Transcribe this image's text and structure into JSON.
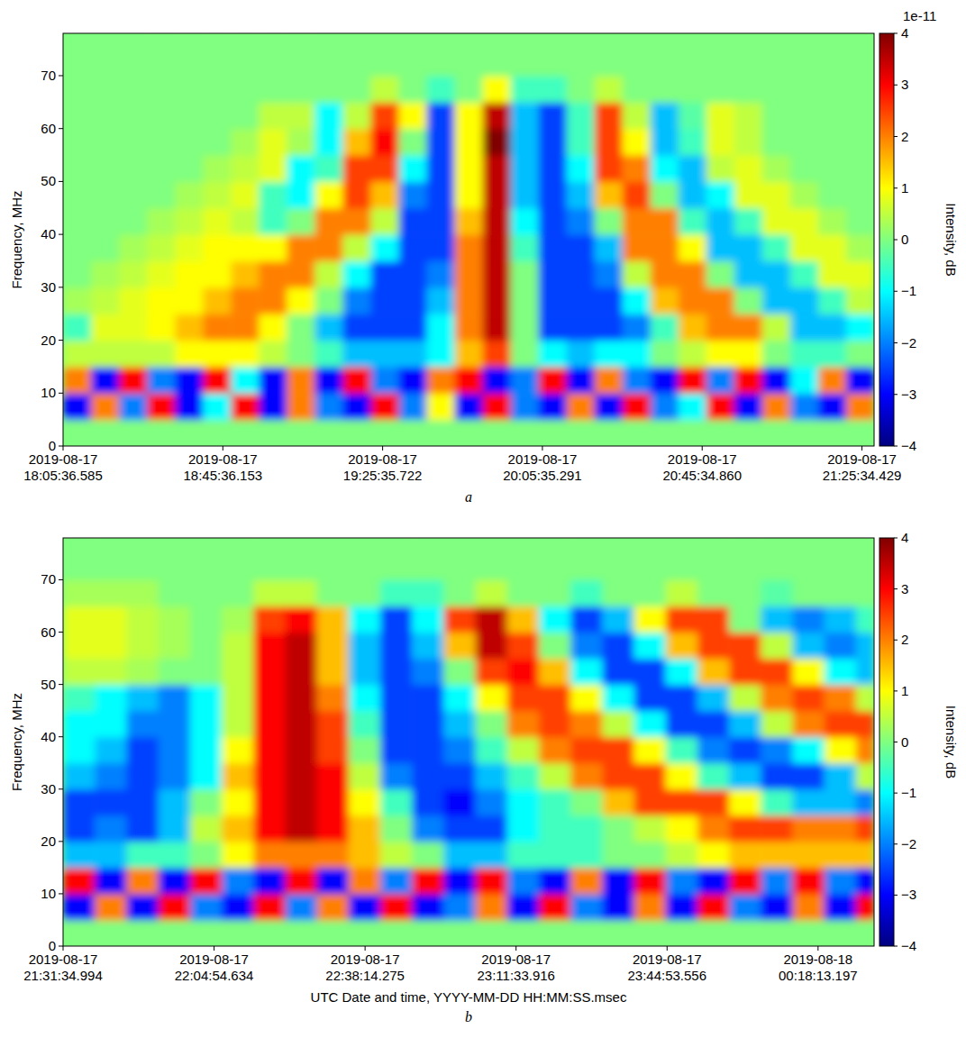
{
  "chart_data": [
    {
      "type": "heatmap",
      "title": "a",
      "y_label": "Frequency, MHz",
      "xlim": [
        "2019-08-17T18:05:36.585",
        "2019-08-17T21:28:36.585"
      ],
      "xticks": [
        {
          "value": "2019-08-17T18:05:36.585",
          "label": "2019-08-17 18:05:36.585"
        },
        {
          "value": "2019-08-17T18:45:36.153",
          "label": "2019-08-17 18:45:36.153"
        },
        {
          "value": "2019-08-17T19:25:35.722",
          "label": "2019-08-17 19:25:35.722"
        },
        {
          "value": "2019-08-17T20:05:35.291",
          "label": "2019-08-17 20:05:35.291"
        },
        {
          "value": "2019-08-17T20:45:34.860",
          "label": "2019-08-17 20:45:34.860"
        },
        {
          "value": "2019-08-17T21:25:34.429",
          "label": "2019-08-17 21:25:34.429"
        }
      ],
      "ylim": [
        0,
        78
      ],
      "yticks": [
        0,
        10,
        20,
        30,
        40,
        50,
        60,
        70
      ],
      "x_edges": [
        "2019-08-17T18:05:36.585",
        "2019-08-17T18:12:36.585",
        "2019-08-17T18:19:36.585",
        "2019-08-17T18:26:36.585",
        "2019-08-17T18:33:36.585",
        "2019-08-17T18:40:36.585",
        "2019-08-17T18:47:36.585",
        "2019-08-17T18:54:36.585",
        "2019-08-17T19:01:36.585",
        "2019-08-17T19:08:36.585",
        "2019-08-17T19:15:36.585",
        "2019-08-17T19:22:36.585",
        "2019-08-17T19:29:36.585",
        "2019-08-17T19:36:36.585",
        "2019-08-17T19:43:36.585",
        "2019-08-17T19:50:36.585",
        "2019-08-17T19:57:36.585",
        "2019-08-17T20:04:36.585",
        "2019-08-17T20:11:36.585",
        "2019-08-17T20:18:36.585",
        "2019-08-17T20:25:36.585",
        "2019-08-17T20:32:36.585",
        "2019-08-17T20:39:36.585",
        "2019-08-17T20:46:36.585",
        "2019-08-17T20:53:36.585",
        "2019-08-17T21:00:36.585",
        "2019-08-17T21:07:36.585",
        "2019-08-17T21:14:36.585",
        "2019-08-17T21:21:36.585",
        "2019-08-17T21:28:36.585"
      ],
      "y_edges": [
        0,
        5,
        10,
        15,
        20,
        25,
        30,
        35,
        40,
        45,
        50,
        55,
        60,
        65,
        70,
        78
      ],
      "cells": [
        [
          0,
          0,
          0,
          0,
          0,
          0,
          0,
          0,
          0,
          0,
          0,
          0,
          0,
          0,
          0,
          0,
          0,
          0,
          0,
          0,
          0,
          0,
          0,
          0,
          0,
          0,
          0,
          0,
          0
        ],
        [
          -3,
          2,
          -2,
          3,
          -3,
          -1,
          3,
          -3,
          2,
          -2,
          -3,
          3,
          -2,
          1,
          -3,
          3,
          -2,
          -3,
          2,
          -3,
          3,
          -2,
          -1,
          3,
          -3,
          2,
          -2,
          -3,
          2
        ],
        [
          2,
          -3,
          3,
          -2,
          -3,
          3,
          -1,
          -3,
          2,
          -3,
          3,
          -2,
          -3,
          2,
          3,
          -3,
          -2,
          3,
          -3,
          2,
          -2,
          -3,
          3,
          -2,
          3,
          -3,
          -1,
          2,
          -3
        ],
        [
          0.5,
          0.5,
          0.5,
          0.5,
          1,
          1,
          1,
          0.5,
          0,
          -0.5,
          -1.5,
          -1.5,
          -1.5,
          -1,
          1.5,
          2.5,
          0,
          -1,
          -1.5,
          -1,
          -1,
          0,
          0.5,
          1,
          1,
          0,
          -0.5,
          -0.5,
          0
        ],
        [
          -0.5,
          0.8,
          0.8,
          1,
          1.5,
          2,
          2,
          1,
          0,
          -1.5,
          -2.5,
          -2.5,
          -2.5,
          -1,
          2,
          3.5,
          0,
          -2.5,
          -2.5,
          -2.5,
          -2,
          -0.5,
          1.5,
          2,
          2,
          0.5,
          -1.5,
          -1.5,
          -1
        ],
        [
          0.3,
          0.5,
          0.8,
          1,
          1,
          1.5,
          2,
          2,
          1,
          0,
          -2,
          -2.5,
          -2.5,
          -1.5,
          2,
          3.5,
          0,
          -2.5,
          -2.5,
          -2.5,
          -1,
          1.5,
          2,
          2,
          0,
          -1.5,
          -1.5,
          -0.5,
          0.5
        ],
        [
          0,
          0.3,
          0.5,
          0.8,
          1,
          1,
          1.5,
          2,
          2,
          0.5,
          -1,
          -2.5,
          -2.5,
          -2,
          2,
          3.5,
          0,
          -2.5,
          -2.5,
          -2,
          0.5,
          2,
          2,
          0,
          -1.5,
          -1.5,
          -0.5,
          0.8,
          0.8
        ],
        [
          0,
          0,
          0.3,
          0.5,
          0.8,
          1,
          1,
          1,
          2,
          2,
          0.5,
          -1,
          -2.5,
          -2.5,
          2,
          3.5,
          -0.5,
          -2.5,
          -2.5,
          -1.5,
          2,
          2,
          1,
          -1.5,
          -1.5,
          -0.5,
          0.8,
          0.8,
          0.3
        ],
        [
          0,
          0,
          0,
          0.3,
          0.5,
          0.8,
          0.5,
          -0.5,
          0,
          2,
          2,
          0.5,
          -2.5,
          -2.5,
          1.5,
          3.5,
          -1,
          -2.5,
          -2,
          0,
          2,
          2,
          -0.5,
          -1.5,
          -0.5,
          0.8,
          0.8,
          0.3,
          0
        ],
        [
          0,
          0,
          0,
          0,
          0.3,
          0.5,
          0.8,
          -0.5,
          -1,
          1,
          2.5,
          1.5,
          -2,
          -2.5,
          1,
          3.5,
          -1.5,
          -2.5,
          -1.5,
          1.5,
          2.5,
          0,
          -1.5,
          -1,
          0.8,
          0.8,
          0.3,
          0,
          0
        ],
        [
          0,
          0,
          0,
          0,
          0,
          0.3,
          0.5,
          0.8,
          -1,
          -0.5,
          2.5,
          2.5,
          -1,
          -2.5,
          1,
          3.5,
          -1.5,
          -2.5,
          -1,
          2.5,
          2,
          -1,
          -1.5,
          0.5,
          0.8,
          0.3,
          0,
          0,
          0
        ],
        [
          0,
          0,
          0,
          0,
          0,
          0,
          0.3,
          0.8,
          0.3,
          -1,
          1.5,
          3,
          0,
          -2.5,
          1,
          4,
          -1.5,
          -2.5,
          -0.5,
          2.5,
          1,
          -1.5,
          -0.5,
          0.8,
          0.5,
          0,
          0,
          0,
          0
        ],
        [
          0,
          0,
          0,
          0,
          0,
          0,
          0,
          0.5,
          0.5,
          -1,
          0.5,
          2.5,
          1,
          -2.5,
          1,
          3.5,
          -1.5,
          -2.5,
          -0.5,
          2.5,
          0.5,
          -1.5,
          -0.3,
          0.8,
          0.5,
          0,
          0,
          0,
          0
        ],
        [
          0,
          0,
          0,
          0,
          0,
          0,
          0,
          0,
          0,
          0,
          0,
          0.5,
          0,
          -0.5,
          0,
          1,
          -0.5,
          -0.5,
          0,
          0.5,
          0,
          0,
          0,
          0,
          0,
          0,
          0,
          0,
          0
        ],
        [
          0,
          0,
          0,
          0,
          0,
          0,
          0,
          0,
          0,
          0,
          0,
          0,
          0,
          0,
          0,
          0,
          0,
          0,
          0,
          0,
          0,
          0,
          0,
          0,
          0,
          0,
          0,
          0,
          0
        ]
      ],
      "colorbar": {
        "label": "Intensity, dB",
        "offset_label": "1e-11",
        "range": [
          -4,
          4
        ],
        "ticks": [
          {
            "value": -4,
            "label": "−4"
          },
          {
            "value": -3,
            "label": "−3"
          },
          {
            "value": -2,
            "label": "−2"
          },
          {
            "value": -1,
            "label": "−1"
          },
          0,
          1,
          2,
          3,
          4
        ]
      }
    },
    {
      "type": "heatmap",
      "title": "b",
      "y_label": "Frequency, MHz",
      "x_label": "UTC Date and time, YYYY-MM-DD HH:MM:SS.msec",
      "xlim": [
        "2019-08-17T21:31:34.994",
        "2019-08-18T00:30:34.994"
      ],
      "xticks": [
        {
          "value": "2019-08-17T21:31:34.994",
          "label": "2019-08-17 21:31:34.994"
        },
        {
          "value": "2019-08-17T22:04:54.634",
          "label": "2019-08-17 22:04:54.634"
        },
        {
          "value": "2019-08-17T22:38:14.275",
          "label": "2019-08-17 22:38:14.275"
        },
        {
          "value": "2019-08-17T23:11:33.916",
          "label": "2019-08-17 23:11:33.916"
        },
        {
          "value": "2019-08-17T23:44:53.556",
          "label": "2019-08-17 23:44:53.556"
        },
        {
          "value": "2019-08-18T00:18:13.197",
          "label": "2019-08-18 00:18:13.197"
        }
      ],
      "ylim": [
        0,
        78
      ],
      "yticks": [
        0,
        10,
        20,
        30,
        40,
        50,
        60,
        70
      ],
      "x_edges": [
        "2019-08-17T21:31:34.994",
        "2019-08-17T21:38:34.994",
        "2019-08-17T21:45:34.994",
        "2019-08-17T21:52:34.994",
        "2019-08-17T21:59:34.994",
        "2019-08-17T22:06:34.994",
        "2019-08-17T22:13:34.994",
        "2019-08-17T22:20:34.994",
        "2019-08-17T22:27:34.994",
        "2019-08-17T22:34:34.994",
        "2019-08-17T22:41:34.994",
        "2019-08-17T22:48:34.994",
        "2019-08-17T22:55:34.994",
        "2019-08-17T23:02:34.994",
        "2019-08-17T23:09:34.994",
        "2019-08-17T23:16:34.994",
        "2019-08-17T23:23:34.994",
        "2019-08-17T23:30:34.994",
        "2019-08-17T23:37:34.994",
        "2019-08-17T23:44:34.994",
        "2019-08-17T23:51:34.994",
        "2019-08-17T23:58:34.994",
        "2019-08-18T00:05:34.994",
        "2019-08-18T00:12:34.994",
        "2019-08-18T00:19:34.994",
        "2019-08-18T00:26:34.994",
        "2019-08-18T00:30:34.994"
      ],
      "y_edges": [
        0,
        5,
        10,
        15,
        20,
        25,
        30,
        35,
        40,
        45,
        50,
        55,
        60,
        65,
        70,
        78
      ],
      "cells": [
        [
          0,
          0,
          0,
          0,
          0,
          0,
          0,
          0,
          0,
          0,
          0,
          0,
          0,
          0,
          0,
          0,
          0,
          0,
          0,
          0,
          0,
          0,
          0,
          0,
          0,
          0
        ],
        [
          -3,
          2,
          -3,
          3,
          -2,
          -3,
          3,
          -2,
          2,
          -3,
          3,
          -3,
          -2,
          2,
          -3,
          3,
          -2,
          -3,
          2,
          -3,
          3,
          -2,
          -3,
          2,
          -3,
          3
        ],
        [
          3,
          -3,
          2,
          -3,
          3,
          -2,
          -3,
          3,
          -3,
          2,
          -2,
          3,
          -3,
          3,
          -2,
          -3,
          2,
          -3,
          3,
          -2,
          -3,
          3,
          -2,
          3,
          -2,
          -3
        ],
        [
          -1.5,
          -1.5,
          -0.5,
          -0.5,
          0,
          1,
          2,
          2,
          2,
          1.5,
          0.5,
          0,
          -1.5,
          -1.5,
          -0.5,
          -0.5,
          -0.5,
          0,
          0,
          0.5,
          1,
          1.5,
          1.5,
          1.5,
          1.5,
          1.5
        ],
        [
          -2.5,
          -2,
          -2.5,
          -1.5,
          0.5,
          1.5,
          3,
          3.5,
          3,
          1.5,
          0,
          -2,
          -2.5,
          -2.5,
          -1,
          -0.5,
          -0.5,
          0,
          0.5,
          1,
          2,
          2.5,
          2.5,
          2,
          2,
          2.5
        ],
        [
          -2.5,
          -2.5,
          -2.5,
          -1.5,
          0,
          1,
          3,
          3.5,
          3,
          1,
          -0.5,
          -2.5,
          -3,
          -2,
          -1,
          -0.5,
          0,
          1.5,
          2.5,
          2.5,
          2.5,
          1,
          -0.5,
          -1.5,
          -1.5,
          -2
        ],
        [
          -1.5,
          -2,
          -2.5,
          -2,
          -1,
          1.5,
          3,
          3.5,
          3,
          0.5,
          -2,
          -2.5,
          -2.5,
          -1.5,
          -0.5,
          0.5,
          2,
          2.5,
          2.5,
          1,
          -0.5,
          -1.5,
          -2.5,
          -2.5,
          -1.5,
          0.5
        ],
        [
          -1,
          -1.5,
          -2.5,
          -2,
          -1,
          1,
          3,
          3.5,
          2.5,
          0,
          -2.5,
          -2.5,
          -2,
          -0.5,
          0.5,
          2,
          2.5,
          2.5,
          1,
          -0.5,
          -2,
          -2.5,
          -2,
          -1,
          1,
          2
        ],
        [
          -1,
          -1,
          -2,
          -2,
          -1,
          0.5,
          3,
          3.5,
          2.5,
          -0.5,
          -2.5,
          -2.5,
          -1.5,
          0,
          2,
          2.5,
          2,
          0.5,
          -1,
          -2.5,
          -2.5,
          -1.5,
          0.5,
          2,
          2.5,
          2.5
        ],
        [
          -0.5,
          -1,
          -1.5,
          -2,
          -1,
          0.5,
          3,
          3.5,
          2,
          -1,
          -2.5,
          -2.5,
          -1,
          1,
          2.5,
          2.5,
          1,
          -1,
          -2.5,
          -2.5,
          -1.5,
          0.5,
          2,
          2.5,
          2,
          0.5
        ],
        [
          0.5,
          0.5,
          0.3,
          0,
          0,
          0.5,
          3,
          3.5,
          1.5,
          -1.5,
          -2.5,
          -2,
          0,
          2.5,
          3,
          1.5,
          -1,
          -2.5,
          -2.5,
          -1,
          1.5,
          2.5,
          2.5,
          1,
          -1,
          -1.5
        ],
        [
          0.8,
          0.8,
          0.5,
          0.3,
          0,
          0.5,
          3,
          3.5,
          1.5,
          -1.5,
          -2.5,
          -1.5,
          1.5,
          3.5,
          2.5,
          0,
          -2,
          -2.5,
          -1,
          1.5,
          2.5,
          2.5,
          0.5,
          -1.5,
          -2,
          -1.5
        ],
        [
          0.8,
          0.8,
          0.5,
          0.3,
          0,
          0.3,
          2.5,
          3,
          1.5,
          -1,
          -2.5,
          -1,
          2.5,
          3.5,
          1.5,
          -1,
          -2.5,
          -1.5,
          1,
          2.5,
          2.5,
          0,
          -1.5,
          -2,
          -1.5,
          -0.5
        ],
        [
          0.3,
          0.3,
          0.3,
          0,
          0,
          0,
          0.5,
          0.5,
          0,
          0,
          -0.5,
          -0.5,
          0,
          0.5,
          0,
          0,
          -0.5,
          0,
          0,
          0.5,
          0,
          0,
          -0.3,
          0,
          0,
          0
        ],
        [
          0,
          0,
          0,
          0,
          0,
          0,
          0,
          0,
          0,
          0,
          0,
          0,
          0,
          0,
          0,
          0,
          0,
          0,
          0,
          0,
          0,
          0,
          0,
          0,
          0,
          0
        ]
      ],
      "colorbar": {
        "label": "Intensity, dB",
        "range": [
          -4,
          4
        ],
        "ticks": [
          {
            "value": -4,
            "label": "−4"
          },
          {
            "value": -3,
            "label": "−3"
          },
          {
            "value": -2,
            "label": "−2"
          },
          {
            "value": -1,
            "label": "−1"
          },
          0,
          1,
          2,
          3,
          4
        ]
      }
    }
  ]
}
